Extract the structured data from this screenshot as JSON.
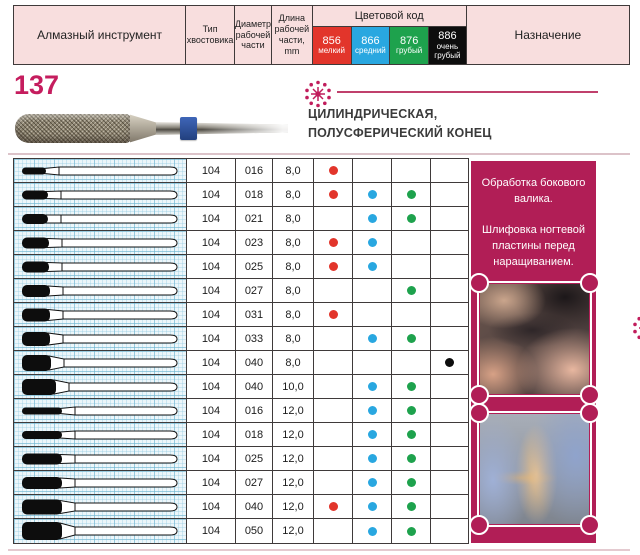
{
  "header": {
    "col_instrument": "Алмазный инструмент",
    "col_shank": "Тип хвостовика",
    "col_diameter": "Диаметр рабочей части",
    "col_length": "Длина рабочей части, mm",
    "col_color_code": "Цветовой код",
    "col_purpose": "Назначение",
    "grits": [
      {
        "code": "856",
        "label": "мелкий",
        "color": "#e2352b"
      },
      {
        "code": "866",
        "label": "средний",
        "color": "#29a7e0"
      },
      {
        "code": "876",
        "label": "грубый",
        "color": "#1ea24d"
      },
      {
        "code": "886",
        "label": "очень\nгрубый",
        "color": "#0d0d0d"
      }
    ]
  },
  "product": {
    "number": "137",
    "shape_title_line1": "ЦИЛИНДРИЧЕСКАЯ,",
    "shape_title_line2": "ПОЛУСФЕРИЧЕСКИЙ КОНЕЦ"
  },
  "table": {
    "rows": [
      {
        "shank": "104",
        "diameter": "016",
        "length": "8,0",
        "grits": [
          "856"
        ],
        "tip_w": 24,
        "tip_h": 7
      },
      {
        "shank": "104",
        "diameter": "018",
        "length": "8,0",
        "grits": [
          "856",
          "866",
          "876"
        ],
        "tip_w": 26,
        "tip_h": 9
      },
      {
        "shank": "104",
        "diameter": "021",
        "length": "8,0",
        "grits": [
          "866",
          "876"
        ],
        "tip_w": 26,
        "tip_h": 10
      },
      {
        "shank": "104",
        "diameter": "023",
        "length": "8,0",
        "grits": [
          "856",
          "866"
        ],
        "tip_w": 27,
        "tip_h": 11
      },
      {
        "shank": "104",
        "diameter": "025",
        "length": "8,0",
        "grits": [
          "856",
          "866"
        ],
        "tip_w": 27,
        "tip_h": 11
      },
      {
        "shank": "104",
        "diameter": "027",
        "length": "8,0",
        "grits": [
          "876"
        ],
        "tip_w": 28,
        "tip_h": 12
      },
      {
        "shank": "104",
        "diameter": "031",
        "length": "8,0",
        "grits": [
          "856"
        ],
        "tip_w": 28,
        "tip_h": 13
      },
      {
        "shank": "104",
        "diameter": "033",
        "length": "8,0",
        "grits": [
          "866",
          "876"
        ],
        "tip_w": 28,
        "tip_h": 14
      },
      {
        "shank": "104",
        "diameter": "040",
        "length": "8,0",
        "grits": [
          "886"
        ],
        "tip_w": 29,
        "tip_h": 16
      },
      {
        "shank": "104",
        "diameter": "040",
        "length": "10,0",
        "grits": [
          "866",
          "876"
        ],
        "tip_w": 34,
        "tip_h": 16
      },
      {
        "shank": "104",
        "diameter": "016",
        "length": "12,0",
        "grits": [
          "866",
          "876"
        ],
        "tip_w": 40,
        "tip_h": 7
      },
      {
        "shank": "104",
        "diameter": "018",
        "length": "12,0",
        "grits": [
          "866",
          "876"
        ],
        "tip_w": 40,
        "tip_h": 8
      },
      {
        "shank": "104",
        "diameter": "025",
        "length": "12,0",
        "grits": [
          "866",
          "876"
        ],
        "tip_w": 40,
        "tip_h": 11
      },
      {
        "shank": "104",
        "diameter": "027",
        "length": "12,0",
        "grits": [
          "866",
          "876"
        ],
        "tip_w": 40,
        "tip_h": 12
      },
      {
        "shank": "104",
        "diameter": "040",
        "length": "12,0",
        "grits": [
          "856",
          "866",
          "876"
        ],
        "tip_w": 40,
        "tip_h": 15
      },
      {
        "shank": "104",
        "diameter": "050",
        "length": "12,0",
        "grits": [
          "866",
          "876"
        ],
        "tip_w": 40,
        "tip_h": 18
      }
    ]
  },
  "side_panel": {
    "bg": "#b11e56",
    "text1": "Обработка бокового валика.",
    "text2": "Шлифовка ногтевой пластины перед наращиванием."
  },
  "accents": {
    "crimson": "#c51d5e",
    "header_pink": "#f8dede"
  }
}
